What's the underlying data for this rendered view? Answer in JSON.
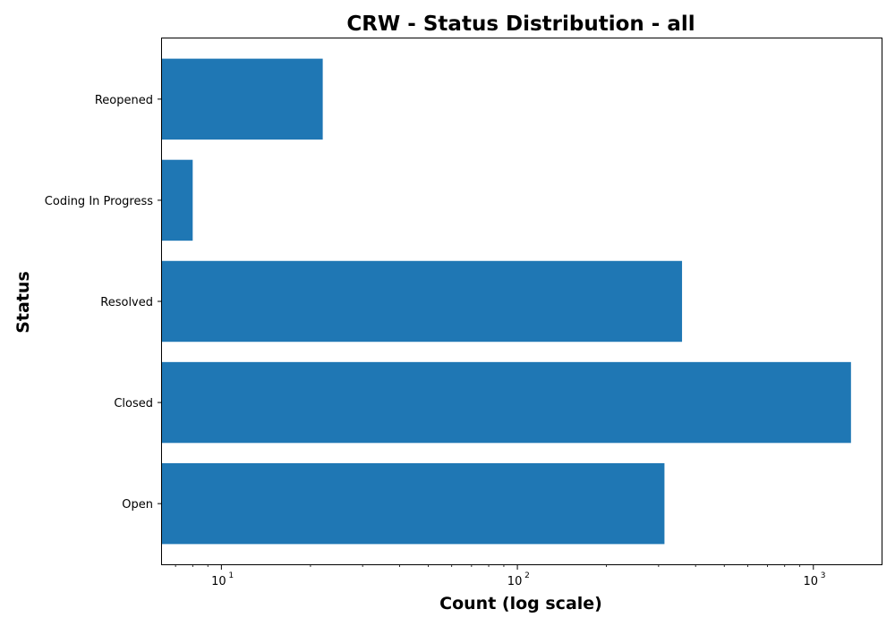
{
  "chart_data": {
    "type": "bar",
    "orientation": "horizontal",
    "title": "CRW - Status Distribution - all",
    "xlabel": "Count (log scale)",
    "ylabel": "Status",
    "xscale": "log",
    "xlim": [
      6.3,
      1700
    ],
    "x_major_ticks": [
      {
        "value": 10,
        "base": "10",
        "exp": "1"
      },
      {
        "value": 100,
        "base": "10",
        "exp": "2"
      },
      {
        "value": 1000,
        "base": "10",
        "exp": "3"
      }
    ],
    "categories": [
      "Open",
      "Closed",
      "Resolved",
      "Coding In Progress",
      "Reopened"
    ],
    "values": [
      314,
      1340,
      360,
      8,
      22
    ],
    "bar_color": "#1f77b4",
    "grid": false,
    "legend": "none"
  }
}
